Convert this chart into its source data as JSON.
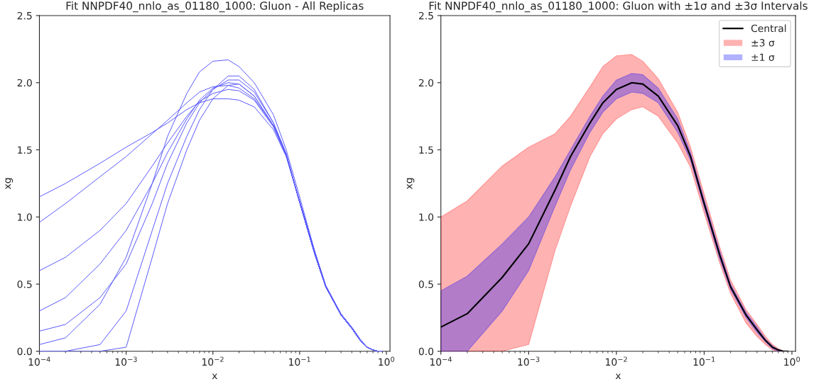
{
  "chart_data": [
    {
      "type": "line",
      "title": "Fit NNPDF40_nnlo_as_01180_1000: Gluon - All Replicas",
      "xlabel": "x",
      "ylabel": "xg",
      "log": "x",
      "grid": false,
      "legend": false,
      "xlim": [
        0.0001,
        1.1
      ],
      "xticks": [
        {
          "value": 0.0001,
          "label": "10$^{−4}$"
        },
        {
          "value": 0.001,
          "label": "10$^{−3}$"
        },
        {
          "value": 0.01,
          "label": "10$^{−2}$"
        },
        {
          "value": 0.1,
          "label": "10$^{−1}$"
        },
        {
          "value": 1,
          "label": "10$^{0}$"
        }
      ],
      "ylim": [
        0,
        2.5
      ],
      "yticks": [
        {
          "value": 0,
          "label": "0.0"
        },
        {
          "value": 0.5,
          "label": "0.5"
        },
        {
          "value": 1,
          "label": "1.0"
        },
        {
          "value": 1.5,
          "label": "1.5"
        },
        {
          "value": 2,
          "label": "2.0"
        },
        {
          "value": 2.5,
          "label": "2.5"
        }
      ],
      "x": [
        0.0001,
        0.0002,
        0.0005,
        0.001,
        0.002,
        0.003,
        0.005,
        0.007,
        0.01,
        0.015,
        0.02,
        0.03,
        0.05,
        0.07,
        0.1,
        0.15,
        0.2,
        0.3,
        0.4,
        0.5,
        0.6,
        0.7,
        0.8,
        0.9
      ],
      "series": [
        {
          "color": "#5555ff",
          "values": [
            1.15,
            1.25,
            1.4,
            1.52,
            1.63,
            1.7,
            1.8,
            1.85,
            1.88,
            1.88,
            1.87,
            1.82,
            1.65,
            1.45,
            1.12,
            0.74,
            0.49,
            0.27,
            0.17,
            0.08,
            0.03,
            0.01,
            0,
            0
          ]
        },
        {
          "color": "#5555ff",
          "values": [
            0.96,
            1.1,
            1.3,
            1.45,
            1.62,
            1.72,
            1.85,
            1.93,
            1.97,
            1.98,
            1.96,
            1.88,
            1.68,
            1.46,
            1.11,
            0.72,
            0.48,
            0.27,
            0.17,
            0.08,
            0.03,
            0.01,
            0,
            0
          ]
        },
        {
          "color": "#5555ff",
          "values": [
            0.6,
            0.7,
            0.9,
            1.1,
            1.38,
            1.55,
            1.75,
            1.86,
            1.92,
            1.95,
            1.94,
            1.87,
            1.67,
            1.46,
            1.11,
            0.72,
            0.48,
            0.27,
            0.17,
            0.08,
            0.03,
            0.01,
            0,
            0
          ]
        },
        {
          "color": "#5555ff",
          "values": [
            0.3,
            0.4,
            0.65,
            0.9,
            1.25,
            1.48,
            1.73,
            1.87,
            1.96,
            2.0,
            1.99,
            1.9,
            1.68,
            1.46,
            1.11,
            0.72,
            0.48,
            0.27,
            0.17,
            0.08,
            0.03,
            0.01,
            0,
            0
          ]
        },
        {
          "color": "#5555ff",
          "values": [
            0.15,
            0.2,
            0.4,
            0.65,
            1.1,
            1.4,
            1.7,
            1.85,
            1.95,
            2.02,
            2.02,
            1.93,
            1.7,
            1.47,
            1.11,
            0.72,
            0.48,
            0.27,
            0.17,
            0.08,
            0.03,
            0.01,
            0,
            0
          ]
        },
        {
          "color": "#5555ff",
          "values": [
            0.05,
            0.1,
            0.35,
            0.7,
            1.25,
            1.6,
            1.92,
            2.08,
            2.16,
            2.17,
            2.12,
            2.0,
            1.76,
            1.5,
            1.15,
            0.74,
            0.49,
            0.28,
            0.18,
            0.09,
            0.03,
            0.01,
            0,
            0
          ]
        },
        {
          "color": "#5555ff",
          "values": [
            0,
            0,
            0.05,
            0.3,
            0.9,
            1.25,
            1.6,
            1.8,
            1.95,
            2.05,
            2.05,
            1.95,
            1.7,
            1.47,
            1.11,
            0.72,
            0.48,
            0.27,
            0.17,
            0.08,
            0.03,
            0.01,
            0,
            0
          ]
        },
        {
          "color": "#5555ff",
          "values": [
            0,
            0,
            0,
            0.03,
            0.7,
            1.1,
            1.5,
            1.72,
            1.88,
            1.98,
            1.99,
            1.9,
            1.68,
            1.46,
            1.11,
            0.72,
            0.48,
            0.27,
            0.17,
            0.08,
            0.03,
            0.01,
            0,
            0
          ]
        }
      ]
    },
    {
      "type": "line",
      "title": "Fit NNPDF40_nnlo_as_01180_1000: Gluon with ±1σ and ±3σ Intervals",
      "xlabel": "x",
      "ylabel": "xg",
      "log": "x",
      "grid": false,
      "legend": "top right",
      "xlim": [
        0.0001,
        1.1
      ],
      "xticks": [
        {
          "value": 0.0001,
          "label": "10$^{−4}$"
        },
        {
          "value": 0.001,
          "label": "10$^{−3}$"
        },
        {
          "value": 0.01,
          "label": "10$^{−2}$"
        },
        {
          "value": 0.1,
          "label": "10$^{−1}$"
        },
        {
          "value": 1,
          "label": "10$^{0}$"
        }
      ],
      "ylim": [
        0,
        2.5
      ],
      "yticks": [
        {
          "value": 0,
          "label": "0.0"
        },
        {
          "value": 0.5,
          "label": "0.5"
        },
        {
          "value": 1,
          "label": "1.0"
        },
        {
          "value": 1.5,
          "label": "1.5"
        },
        {
          "value": 2,
          "label": "2.0"
        },
        {
          "value": 2.5,
          "label": "2.5"
        }
      ],
      "x": [
        0.0001,
        0.0002,
        0.0005,
        0.001,
        0.002,
        0.003,
        0.005,
        0.007,
        0.01,
        0.015,
        0.02,
        0.03,
        0.05,
        0.07,
        0.1,
        0.15,
        0.2,
        0.3,
        0.4,
        0.5,
        0.6,
        0.7,
        0.8,
        0.9
      ],
      "series": [
        {
          "name": "Central",
          "type": "line",
          "color": "#000000",
          "values": [
            0.18,
            0.28,
            0.55,
            0.8,
            1.2,
            1.45,
            1.7,
            1.85,
            1.95,
            2.0,
            1.99,
            1.9,
            1.68,
            1.45,
            1.1,
            0.72,
            0.48,
            0.27,
            0.16,
            0.08,
            0.03,
            0.01,
            0,
            0
          ]
        },
        {
          "name": "±3 σ",
          "type": "line",
          "color": "#ff0000",
          "values": [
            null,
            null,
            null,
            null,
            null,
            null,
            null,
            null,
            null,
            null,
            null,
            null,
            null,
            null,
            null,
            null,
            null,
            null,
            null,
            null,
            null,
            null,
            null,
            null
          ],
          "lower": [
            0,
            0,
            0,
            0.05,
            0.75,
            1.08,
            1.45,
            1.62,
            1.73,
            1.8,
            1.82,
            1.75,
            1.55,
            1.37,
            1.03,
            0.66,
            0.43,
            0.21,
            0.11,
            0.05,
            0.01,
            0,
            0,
            0
          ],
          "upper": [
            1.0,
            1.12,
            1.38,
            1.52,
            1.62,
            1.75,
            1.97,
            2.12,
            2.2,
            2.21,
            2.16,
            2.03,
            1.78,
            1.52,
            1.17,
            0.78,
            0.53,
            0.31,
            0.2,
            0.11,
            0.05,
            0.02,
            0,
            0
          ]
        },
        {
          "name": "±1 σ",
          "type": "line",
          "color": "#0000ff",
          "values": [
            null,
            null,
            null,
            null,
            null,
            null,
            null,
            null,
            null,
            null,
            null,
            null,
            null,
            null,
            null,
            null,
            null,
            null,
            null,
            null,
            null,
            null,
            null,
            null
          ],
          "lower": [
            0,
            0,
            0.3,
            0.6,
            1.08,
            1.35,
            1.63,
            1.78,
            1.88,
            1.93,
            1.92,
            1.85,
            1.63,
            1.42,
            1.07,
            0.69,
            0.46,
            0.25,
            0.14,
            0.07,
            0.02,
            0,
            0,
            0
          ],
          "upper": [
            0.45,
            0.56,
            0.8,
            1.0,
            1.3,
            1.5,
            1.75,
            1.9,
            2.02,
            2.07,
            2.06,
            1.96,
            1.73,
            1.48,
            1.13,
            0.75,
            0.5,
            0.29,
            0.18,
            0.09,
            0.04,
            0.01,
            0,
            0
          ]
        }
      ]
    }
  ]
}
